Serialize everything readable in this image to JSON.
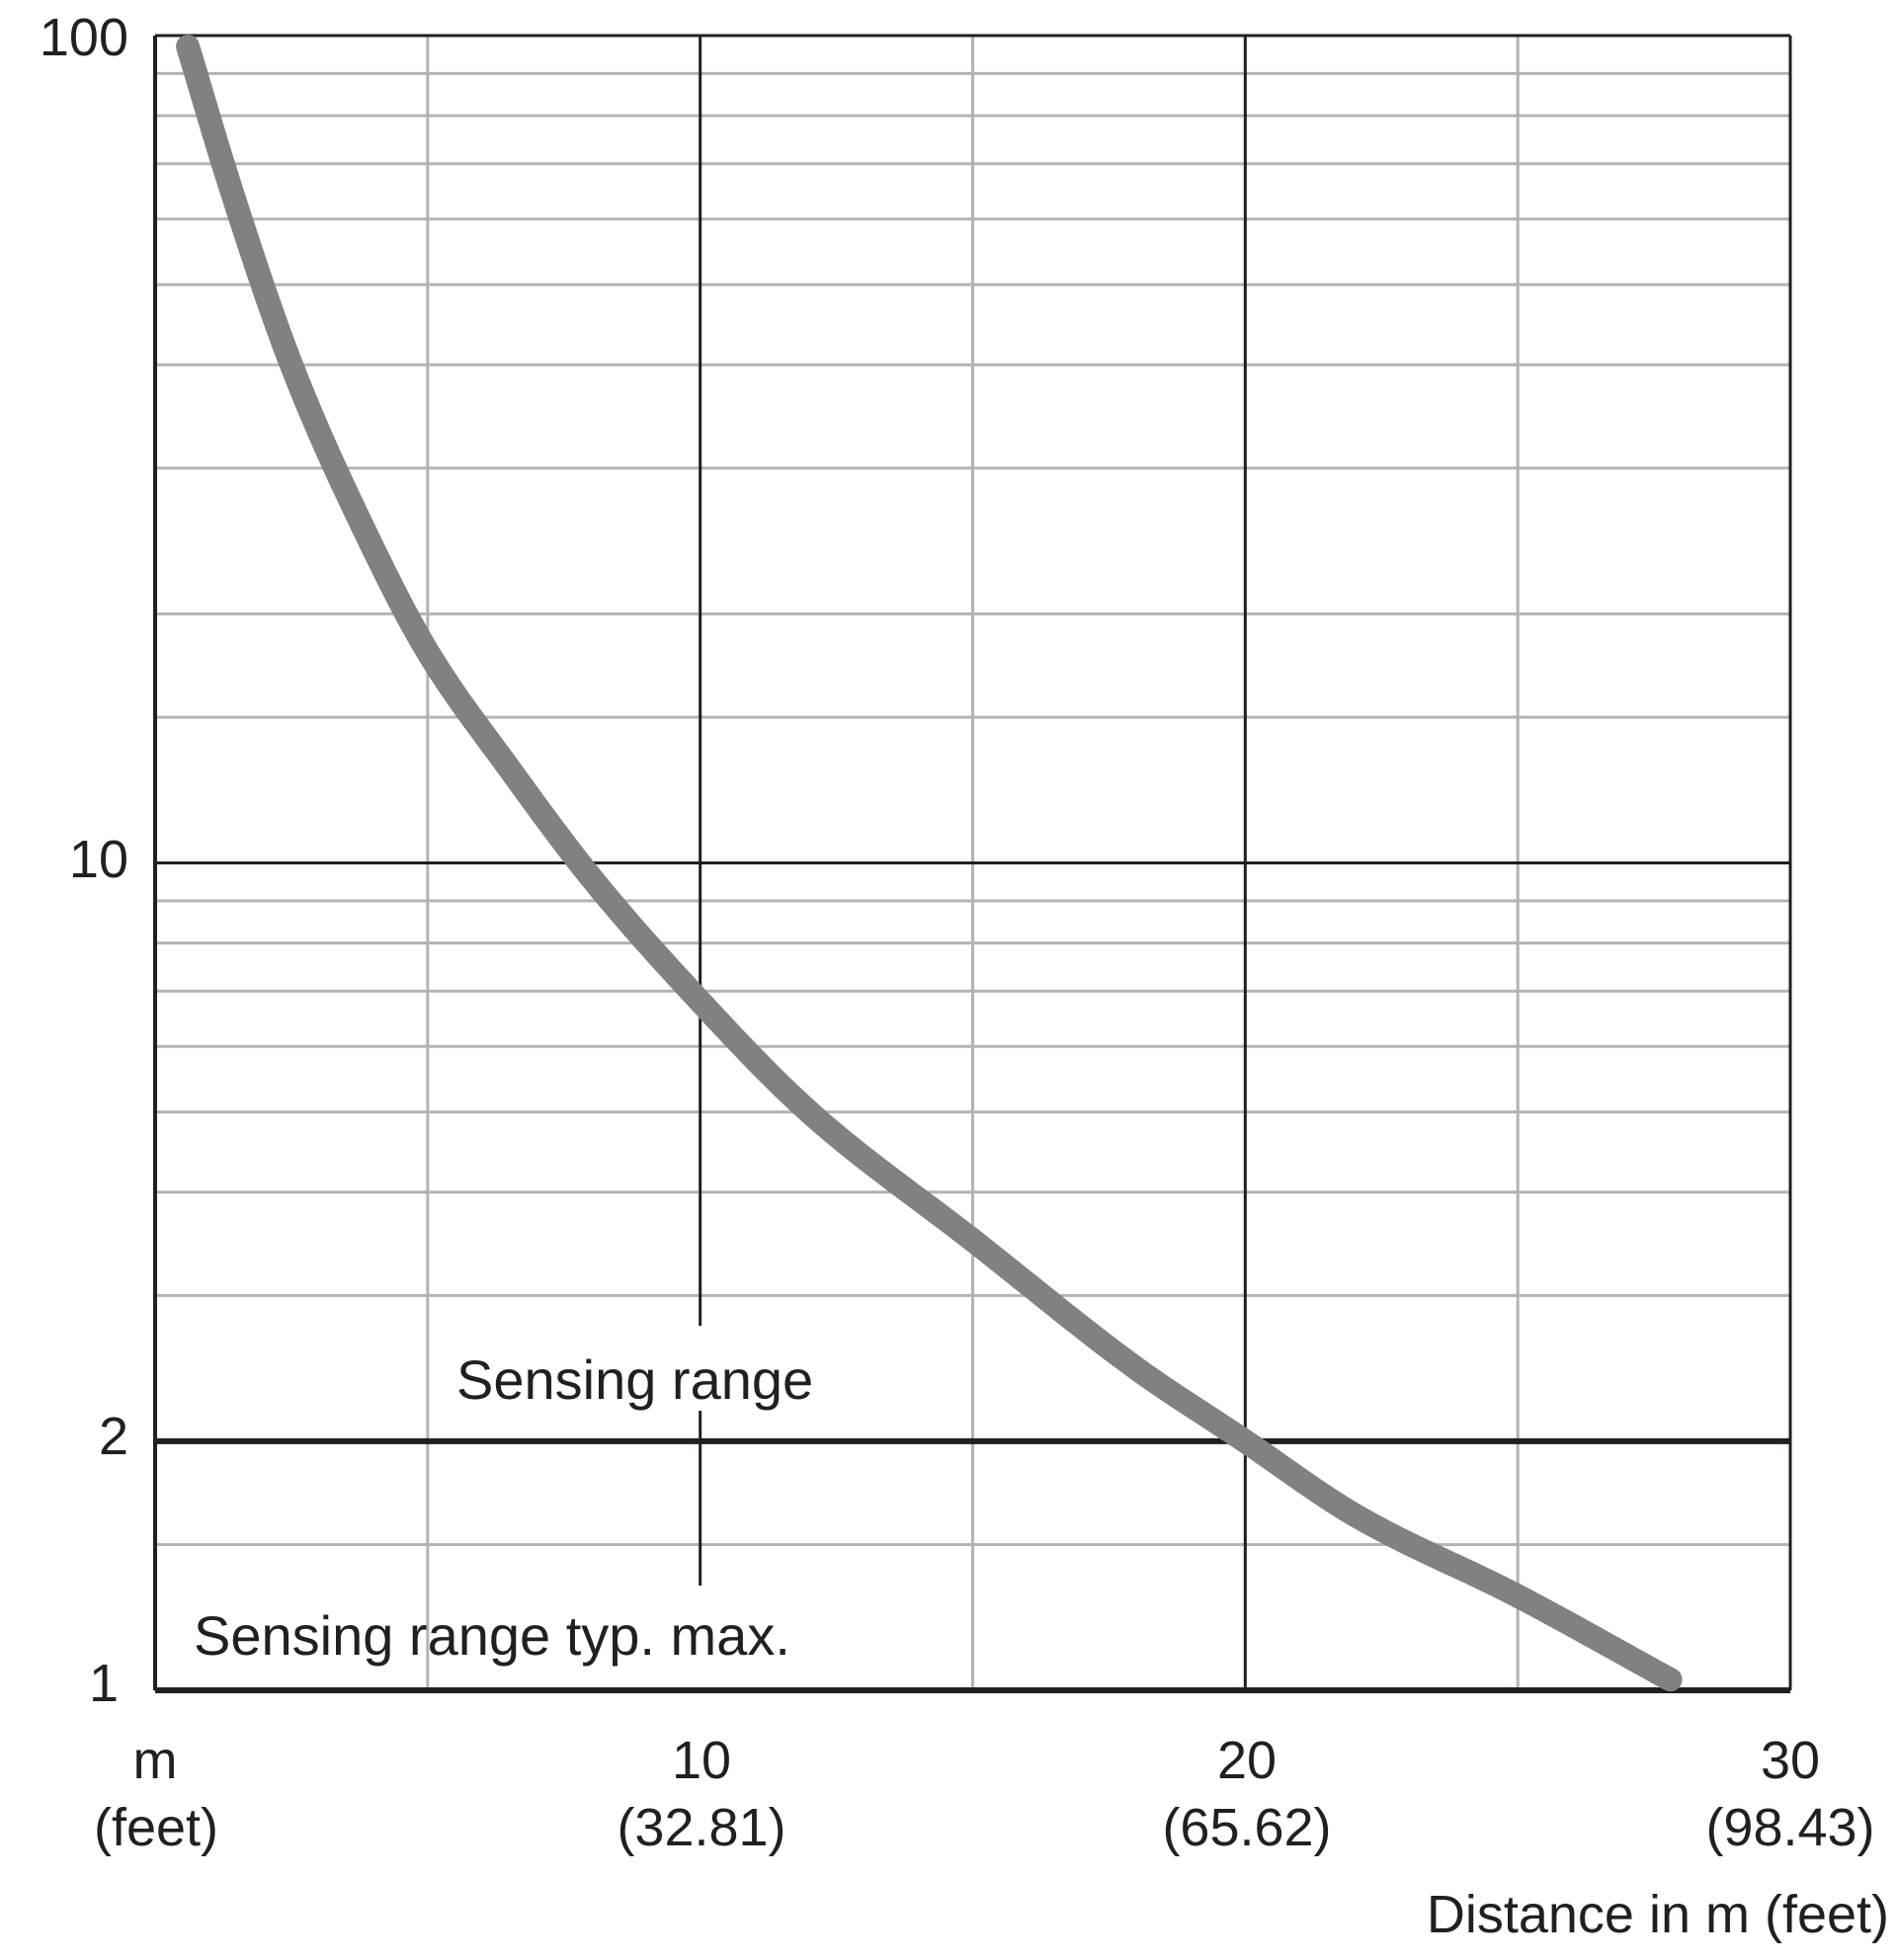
{
  "chart_data": {
    "type": "line",
    "x_axis": {
      "range": [
        0,
        30
      ],
      "scale": "linear",
      "ticks": [
        {
          "value": 0,
          "label": "m",
          "sublabel": "(feet)"
        },
        {
          "value": 10,
          "label": "10",
          "sublabel": "(32.81)"
        },
        {
          "value": 20,
          "label": "20",
          "sublabel": "(65.62)"
        },
        {
          "value": 30,
          "label": "30",
          "sublabel": "(98.43)"
        }
      ],
      "minor_gridlines": [
        5,
        15,
        25
      ],
      "title": "Distance in m (feet)"
    },
    "y_axis": {
      "range": [
        1,
        100
      ],
      "scale": "log",
      "ticks": [
        {
          "value": 1,
          "label": "1"
        },
        {
          "value": 2,
          "label": "2"
        },
        {
          "value": 10,
          "label": "10"
        },
        {
          "value": 100,
          "label": "100"
        }
      ],
      "minor_gridlines": [
        1.5,
        2,
        3,
        4,
        5,
        6,
        7,
        8,
        9,
        15,
        20,
        30,
        40,
        50,
        60,
        70,
        80,
        90
      ]
    },
    "grid": true,
    "reference_lines": [
      {
        "y": 2,
        "label": "Sensing range"
      },
      {
        "y": 1,
        "label": "Sensing range typ. max."
      }
    ],
    "series": [
      {
        "color": "#808184",
        "x": [
          0.6,
          1.4,
          2.5,
          4.0,
          5.0,
          6.5,
          8.0,
          10.0,
          12.0,
          15.0,
          18.0,
          20.0,
          22.0,
          25.0,
          27.8
        ],
        "y": [
          97,
          65,
          40,
          24,
          18,
          13,
          9.6,
          6.8,
          5.0,
          3.5,
          2.45,
          2.0,
          1.63,
          1.3,
          1.03
        ]
      }
    ]
  }
}
